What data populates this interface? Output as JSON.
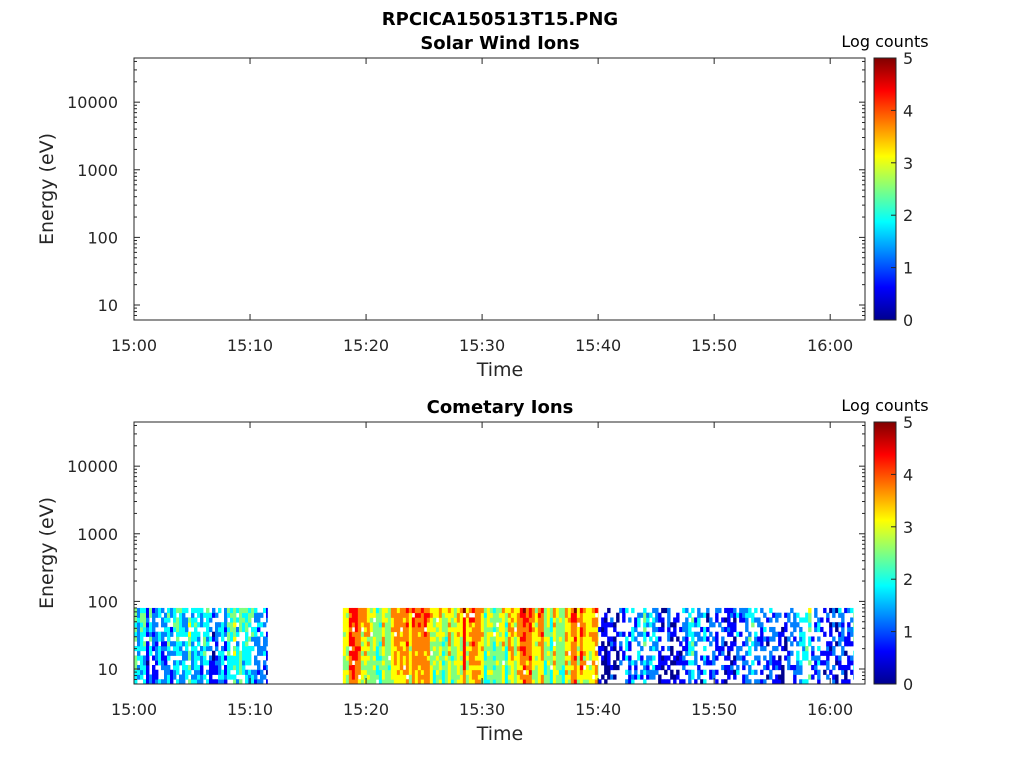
{
  "figure": {
    "title": "RPCICA150513T15.PNG"
  },
  "colorbar_colors": [
    "#00008f",
    "#0000ff",
    "#0080ff",
    "#00ffff",
    "#80ff80",
    "#ffff00",
    "#ff8000",
    "#ff0000",
    "#800000"
  ],
  "chart_data": [
    {
      "type": "heatmap",
      "title": "Solar Wind Ions",
      "xlabel": "Time",
      "ylabel": "Energy (eV)",
      "x_ticks": [
        "15:00",
        "15:10",
        "15:20",
        "15:30",
        "15:40",
        "15:50",
        "16:00"
      ],
      "y_ticks": [
        "10",
        "100",
        "1000",
        "10000"
      ],
      "y_scale": "log",
      "y_range_eV": [
        6,
        45000
      ],
      "colorbar": {
        "label": "Log counts",
        "ticks": [
          "0",
          "1",
          "2",
          "3",
          "4",
          "5"
        ],
        "range": [
          0,
          5
        ]
      },
      "data_segments": []
    },
    {
      "type": "heatmap",
      "title": "Cometary Ions",
      "xlabel": "Time",
      "ylabel": "Energy (eV)",
      "x_ticks": [
        "15:00",
        "15:10",
        "15:20",
        "15:30",
        "15:40",
        "15:50",
        "16:00"
      ],
      "y_ticks": [
        "10",
        "100",
        "1000",
        "10000"
      ],
      "y_scale": "log",
      "y_range_eV": [
        6,
        45000
      ],
      "colorbar": {
        "label": "Log counts",
        "ticks": [
          "0",
          "1",
          "2",
          "3",
          "4",
          "5"
        ],
        "range": [
          0,
          5
        ]
      },
      "energy_range_with_counts_eV": [
        6,
        80
      ],
      "data_segments": [
        {
          "start": "15:00",
          "end": "15:11.5",
          "typical_log_counts": 1.4,
          "sparsity": 0.25
        },
        {
          "start": "15:18",
          "end": "15:40",
          "typical_log_counts": 2.9,
          "sparsity": 0.03
        },
        {
          "start": "15:40",
          "end": "16:02",
          "typical_log_counts": 0.8,
          "sparsity": 0.5
        }
      ]
    }
  ]
}
